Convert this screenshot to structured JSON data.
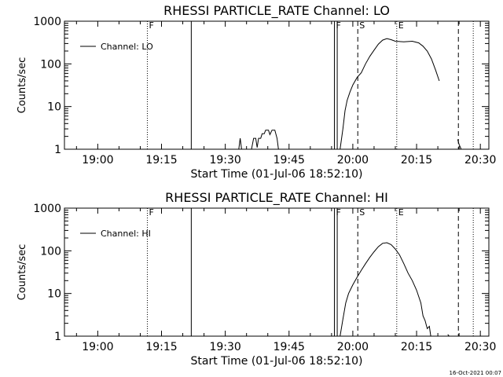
{
  "footer": {
    "timestamp": "16-Oct-2021 00:07"
  },
  "chart_data": [
    {
      "type": "line",
      "title": "RHESSI PARTICLE_RATE Channel: LO",
      "xlabel": "Start Time (01-Jul-06 18:52:10)",
      "ylabel": "Counts/sec",
      "yscale": "log",
      "ylim": [
        1,
        1000
      ],
      "xlim": [
        "18:52:10",
        "20:32:00"
      ],
      "x_ticks": [
        "19:00",
        "19:15",
        "19:30",
        "19:45",
        "20:00",
        "20:15",
        "20:30"
      ],
      "y_ticks": [
        "1",
        "10",
        "100",
        "1000"
      ],
      "legend": {
        "position": "top-left",
        "entries": [
          "Channel: LO"
        ]
      },
      "series": [
        {
          "name": "Channel: LO",
          "segments": [
            [
              [
                "19:33:10",
                1
              ],
              [
                "19:33:30",
                1.8
              ],
              [
                "19:33:50",
                1
              ]
            ],
            [
              [
                "19:36:10",
                1
              ],
              [
                "19:36:40",
                1.8
              ],
              [
                "19:37:10",
                1.8
              ],
              [
                "19:37:30",
                1.1
              ],
              [
                "19:37:50",
                1.8
              ],
              [
                "19:38:20",
                1.8
              ],
              [
                "19:38:40",
                2.3
              ],
              [
                "19:39:10",
                2.3
              ],
              [
                "19:39:30",
                2.8
              ],
              [
                "19:40:10",
                2.8
              ],
              [
                "19:40:30",
                2.2
              ],
              [
                "19:41:00",
                2.8
              ],
              [
                "19:41:40",
                2.8
              ],
              [
                "19:42:10",
                1.8
              ],
              [
                "19:42:30",
                1
              ]
            ],
            [
              [
                "19:57:00",
                1
              ],
              [
                "19:57:40",
                3
              ],
              [
                "19:58:10",
                8
              ],
              [
                "19:58:40",
                14
              ],
              [
                "19:59:20",
                22
              ],
              [
                "20:00:00",
                32
              ],
              [
                "20:01:00",
                48
              ],
              [
                "20:02:00",
                62
              ],
              [
                "20:03:00",
                100
              ],
              [
                "20:04:00",
                150
              ],
              [
                "20:05:00",
                210
              ],
              [
                "20:06:00",
                290
              ],
              [
                "20:07:00",
                360
              ],
              [
                "20:08:00",
                390
              ],
              [
                "20:09:00",
                370
              ],
              [
                "20:10:00",
                340
              ],
              [
                "20:12:00",
                330
              ],
              [
                "20:14:00",
                340
              ],
              [
                "20:15:30",
                310
              ],
              [
                "20:16:30",
                260
              ],
              [
                "20:17:30",
                200
              ],
              [
                "20:18:30",
                130
              ],
              [
                "20:19:30",
                70
              ],
              [
                "20:20:20",
                40
              ]
            ],
            [
              [
                "20:24:40",
                1.7
              ],
              [
                "20:25:00",
                1.3
              ],
              [
                "20:25:30",
                1
              ]
            ]
          ]
        }
      ],
      "event_markers": [
        {
          "label": "F",
          "time": "19:11:40",
          "style": "dotted",
          "labeled": true
        },
        {
          "label": "",
          "time": "19:22:00",
          "style": "solid",
          "labeled": false
        },
        {
          "label": "F",
          "time": "19:55:40",
          "style": "solid",
          "labeled": true
        },
        {
          "label": "",
          "time": "19:56:20",
          "style": "solid",
          "labeled": false
        },
        {
          "label": "S",
          "time": "20:01:10",
          "style": "dashed",
          "labeled": true
        },
        {
          "label": "E",
          "time": "20:10:20",
          "style": "dotted",
          "labeled": true
        },
        {
          "label": "",
          "time": "20:24:50",
          "style": "dashed",
          "labeled": false
        },
        {
          "label": "",
          "time": "20:28:20",
          "style": "dotted",
          "labeled": false
        }
      ]
    },
    {
      "type": "line",
      "title": "RHESSI PARTICLE_RATE Channel: HI",
      "xlabel": "Start Time (01-Jul-06 18:52:10)",
      "ylabel": "Counts/sec",
      "yscale": "log",
      "ylim": [
        1,
        1000
      ],
      "xlim": [
        "18:52:10",
        "20:32:00"
      ],
      "x_ticks": [
        "19:00",
        "19:15",
        "19:30",
        "19:45",
        "20:00",
        "20:15",
        "20:30"
      ],
      "y_ticks": [
        "1",
        "10",
        "100",
        "1000"
      ],
      "legend": {
        "position": "top-left",
        "entries": [
          "Channel: HI"
        ]
      },
      "series": [
        {
          "name": "Channel: HI",
          "segments": [
            [
              [
                "19:57:00",
                1
              ],
              [
                "19:57:40",
                2.5
              ],
              [
                "19:58:20",
                6
              ],
              [
                "19:59:00",
                10
              ],
              [
                "20:00:00",
                16
              ],
              [
                "20:01:00",
                24
              ],
              [
                "20:02:00",
                35
              ],
              [
                "20:03:00",
                50
              ],
              [
                "20:04:00",
                70
              ],
              [
                "20:05:00",
                95
              ],
              [
                "20:06:00",
                125
              ],
              [
                "20:07:00",
                150
              ],
              [
                "20:08:00",
                155
              ],
              [
                "20:09:00",
                140
              ],
              [
                "20:10:00",
                110
              ],
              [
                "20:11:00",
                80
              ],
              [
                "20:12:00",
                50
              ],
              [
                "20:13:00",
                30
              ],
              [
                "20:14:00",
                20
              ],
              [
                "20:15:00",
                12
              ],
              [
                "20:16:00",
                6
              ],
              [
                "20:16:30",
                3
              ],
              [
                "20:17:00",
                2.3
              ],
              [
                "20:17:30",
                1.5
              ],
              [
                "20:18:00",
                1.7
              ],
              [
                "20:18:20",
                1
              ]
            ],
            [
              [
                "20:22:20",
                1.1
              ],
              [
                "20:22:40",
                1
              ]
            ]
          ]
        }
      ],
      "event_markers": [
        {
          "label": "F",
          "time": "19:11:40",
          "style": "dotted",
          "labeled": true
        },
        {
          "label": "",
          "time": "19:22:00",
          "style": "solid",
          "labeled": false
        },
        {
          "label": "F",
          "time": "19:55:40",
          "style": "solid",
          "labeled": true
        },
        {
          "label": "",
          "time": "19:56:20",
          "style": "solid",
          "labeled": false
        },
        {
          "label": "S",
          "time": "20:01:10",
          "style": "dashed",
          "labeled": true
        },
        {
          "label": "E",
          "time": "20:10:20",
          "style": "dotted",
          "labeled": true
        },
        {
          "label": "",
          "time": "20:24:50",
          "style": "dashed",
          "labeled": false
        },
        {
          "label": "",
          "time": "20:28:20",
          "style": "dotted",
          "labeled": false
        }
      ]
    }
  ]
}
